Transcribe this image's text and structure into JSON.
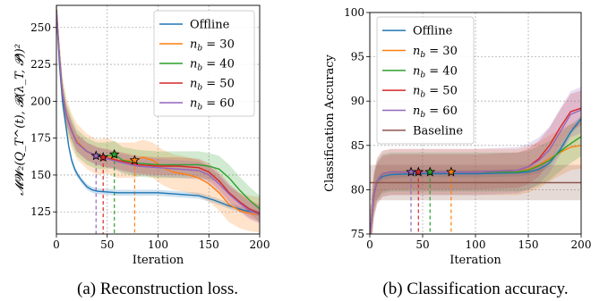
{
  "chart_data": [
    {
      "type": "line",
      "caption": "(a) Reconstruction loss.",
      "xlabel": "Iteration",
      "ylabel": "𝓜𝓦₂(Q_T^(t), 𝓑(λ_T, 𝓟))²",
      "xlim": [
        0,
        200
      ],
      "ylim": [
        110,
        265
      ],
      "xticks": [
        0,
        50,
        100,
        150,
        200
      ],
      "yticks": [
        125,
        150,
        175,
        200,
        225,
        250
      ],
      "grid": true,
      "legend_position": "top-right",
      "series": [
        {
          "name": "Offline",
          "color": "#1f77b4",
          "points": [
            [
              0,
              262
            ],
            [
              3,
              225
            ],
            [
              6,
              200
            ],
            [
              9,
              185
            ],
            [
              12,
              170
            ],
            [
              15,
              160
            ],
            [
              18,
              154
            ],
            [
              21,
              150
            ],
            [
              25,
              146
            ],
            [
              30,
              142
            ],
            [
              35,
              140
            ],
            [
              40,
              139
            ],
            [
              60,
              138
            ],
            [
              80,
              138
            ],
            [
              100,
              138
            ],
            [
              120,
              137
            ],
            [
              140,
              136
            ],
            [
              155,
              133
            ],
            [
              170,
              129
            ],
            [
              185,
              126
            ],
            [
              200,
              124
            ]
          ],
          "band": 2,
          "star": null
        },
        {
          "name": "n_b = 30",
          "color": "#ff7f0e",
          "points": [
            [
              0,
              262
            ],
            [
              3,
              230
            ],
            [
              6,
              205
            ],
            [
              10,
              190
            ],
            [
              15,
              180
            ],
            [
              20,
              173
            ],
            [
              30,
              166
            ],
            [
              40,
              162
            ],
            [
              50,
              163
            ],
            [
              60,
              160
            ],
            [
              70,
              160
            ],
            [
              77,
              160
            ],
            [
              85,
              162
            ],
            [
              95,
              160
            ],
            [
              105,
              155
            ],
            [
              115,
              152
            ],
            [
              130,
              150
            ],
            [
              140,
              148
            ],
            [
              150,
              144
            ],
            [
              160,
              138
            ],
            [
              170,
              130
            ],
            [
              180,
              126
            ],
            [
              190,
              124
            ],
            [
              200,
              123
            ]
          ],
          "band": 12,
          "star": [
            77,
            160
          ]
        },
        {
          "name": "n_b = 40",
          "color": "#2ca02c",
          "points": [
            [
              0,
              262
            ],
            [
              3,
              230
            ],
            [
              6,
              205
            ],
            [
              10,
              190
            ],
            [
              15,
              180
            ],
            [
              20,
              172
            ],
            [
              30,
              166
            ],
            [
              40,
              163
            ],
            [
              50,
              163
            ],
            [
              57,
              164
            ],
            [
              65,
              160
            ],
            [
              80,
              158
            ],
            [
              100,
              157
            ],
            [
              120,
              157
            ],
            [
              140,
              157
            ],
            [
              150,
              156
            ],
            [
              160,
              154
            ],
            [
              170,
              148
            ],
            [
              180,
              140
            ],
            [
              190,
              133
            ],
            [
              200,
              127
            ]
          ],
          "band": 9,
          "star": [
            57,
            164
          ]
        },
        {
          "name": "n_b = 50",
          "color": "#d62728",
          "points": [
            [
              0,
              262
            ],
            [
              3,
              230
            ],
            [
              6,
              205
            ],
            [
              10,
              190
            ],
            [
              15,
              180
            ],
            [
              20,
              172
            ],
            [
              30,
              166
            ],
            [
              40,
              163
            ],
            [
              46,
              162
            ],
            [
              60,
              160
            ],
            [
              80,
              157
            ],
            [
              100,
              156
            ],
            [
              120,
              156
            ],
            [
              140,
              155
            ],
            [
              150,
              152
            ],
            [
              160,
              146
            ],
            [
              170,
              138
            ],
            [
              180,
              132
            ],
            [
              190,
              127
            ],
            [
              200,
              124
            ]
          ],
          "band": 6,
          "star": [
            46,
            162
          ]
        },
        {
          "name": "n_b = 60",
          "color": "#9467bd",
          "points": [
            [
              0,
              262
            ],
            [
              3,
              230
            ],
            [
              6,
              205
            ],
            [
              10,
              190
            ],
            [
              15,
              180
            ],
            [
              20,
              172
            ],
            [
              30,
              166
            ],
            [
              39,
              163
            ],
            [
              50,
              161
            ],
            [
              60,
              159
            ],
            [
              80,
              156
            ],
            [
              100,
              155
            ],
            [
              120,
              154
            ],
            [
              140,
              153
            ],
            [
              150,
              150
            ],
            [
              160,
              144
            ],
            [
              170,
              137
            ],
            [
              180,
              131
            ],
            [
              190,
              126
            ],
            [
              200,
              123
            ]
          ],
          "band": 6,
          "star": [
            39,
            163
          ]
        }
      ]
    },
    {
      "type": "line",
      "caption": "(b) Classification accuracy.",
      "xlabel": "Iteration",
      "ylabel": "Classification Accuracy",
      "xlim": [
        0,
        200
      ],
      "ylim": [
        75,
        100
      ],
      "xticks": [
        0,
        50,
        100,
        150,
        200
      ],
      "yticks": [
        75,
        80,
        85,
        90,
        95,
        100
      ],
      "grid": true,
      "legend_position": "top-left",
      "series": [
        {
          "name": "Offline",
          "color": "#1f77b4",
          "points": [
            [
              0,
              75
            ],
            [
              2,
              77
            ],
            [
              4,
              79.5
            ],
            [
              7,
              81
            ],
            [
              12,
              81.5
            ],
            [
              20,
              81.7
            ],
            [
              40,
              81.8
            ],
            [
              100,
              81.8
            ],
            [
              140,
              81.9
            ],
            [
              150,
              82
            ],
            [
              160,
              82.3
            ],
            [
              170,
              83
            ],
            [
              180,
              84.5
            ],
            [
              190,
              86.5
            ],
            [
              200,
              88
            ]
          ],
          "band": 0.4,
          "star": null
        },
        {
          "name": "n_b = 30",
          "color": "#ff7f0e",
          "points": [
            [
              0,
              75
            ],
            [
              2,
              77
            ],
            [
              4,
              79.5
            ],
            [
              7,
              81
            ],
            [
              12,
              81.8
            ],
            [
              20,
              82
            ],
            [
              40,
              82
            ],
            [
              60,
              82
            ],
            [
              77,
              82
            ],
            [
              100,
              82
            ],
            [
              140,
              82
            ],
            [
              150,
              82.3
            ],
            [
              160,
              82.8
            ],
            [
              170,
              83.5
            ],
            [
              180,
              84.2
            ],
            [
              190,
              84.8
            ],
            [
              200,
              85
            ]
          ],
          "band": 2.6,
          "star": [
            77,
            82
          ]
        },
        {
          "name": "n_b = 40",
          "color": "#2ca02c",
          "points": [
            [
              0,
              75
            ],
            [
              2,
              77
            ],
            [
              4,
              79.5
            ],
            [
              7,
              81
            ],
            [
              12,
              81.8
            ],
            [
              20,
              82
            ],
            [
              40,
              82
            ],
            [
              57,
              82
            ],
            [
              100,
              82
            ],
            [
              140,
              82
            ],
            [
              150,
              82.2
            ],
            [
              160,
              82.7
            ],
            [
              170,
              83.3
            ],
            [
              180,
              84.3
            ],
            [
              190,
              85.2
            ],
            [
              200,
              86
            ]
          ],
          "band": 2.2,
          "star": [
            57,
            82
          ]
        },
        {
          "name": "n_b = 50",
          "color": "#d62728",
          "points": [
            [
              0,
              75
            ],
            [
              2,
              77
            ],
            [
              4,
              79.5
            ],
            [
              7,
              81
            ],
            [
              12,
              81.8
            ],
            [
              20,
              82
            ],
            [
              46,
              82
            ],
            [
              100,
              82
            ],
            [
              140,
              82.2
            ],
            [
              150,
              82.6
            ],
            [
              160,
              83.5
            ],
            [
              170,
              85
            ],
            [
              180,
              87
            ],
            [
              190,
              88.8
            ],
            [
              200,
              89.2
            ]
          ],
          "band": 2.0,
          "star": [
            46,
            82
          ]
        },
        {
          "name": "n_b = 60",
          "color": "#9467bd",
          "points": [
            [
              0,
              75
            ],
            [
              2,
              77
            ],
            [
              4,
              79.5
            ],
            [
              7,
              81
            ],
            [
              12,
              81.8
            ],
            [
              20,
              82
            ],
            [
              39,
              82
            ],
            [
              100,
              82
            ],
            [
              140,
              82.2
            ],
            [
              150,
              82.6
            ],
            [
              160,
              83.3
            ],
            [
              170,
              84.5
            ],
            [
              180,
              86.5
            ],
            [
              190,
              88.5
            ],
            [
              200,
              89
            ]
          ],
          "band": 2.6,
          "star": [
            39,
            82
          ]
        },
        {
          "name": "Baseline",
          "color": "#8c564b",
          "points": [
            [
              0,
              80.8
            ],
            [
              200,
              80.8
            ]
          ],
          "band": 2.0,
          "star": null
        }
      ]
    }
  ]
}
